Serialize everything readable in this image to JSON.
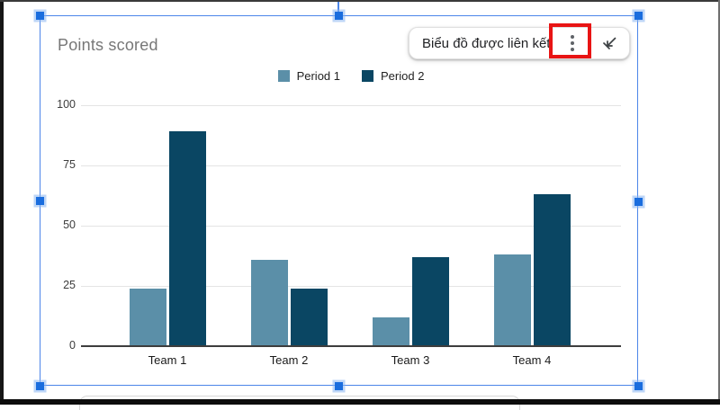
{
  "toolbar": {
    "label": "Biểu đồ được liên kết",
    "menu_icon": "vertical-ellipsis",
    "collapse_icon": "collapse-arrow",
    "highlight_color": "#e81414"
  },
  "selection": {
    "border_color": "#4c86e9",
    "handle_color": "#1a6dde",
    "handle_count": 8
  },
  "chart_data": {
    "type": "bar",
    "title": "Points scored",
    "title_color": "#777777",
    "categories": [
      "Team 1",
      "Team 2",
      "Team 3",
      "Team 4"
    ],
    "series": [
      {
        "name": "Period 1",
        "color": "#5b8fa8",
        "values": [
          24,
          36,
          12,
          38
        ]
      },
      {
        "name": "Period 2",
        "color": "#0a4663",
        "values": [
          89,
          24,
          37,
          63
        ]
      }
    ],
    "ylim": [
      0,
      100
    ],
    "yticks": [
      0,
      25,
      50,
      75,
      100
    ],
    "grid": true,
    "gridline_color": "#e4e4e4",
    "legend_position": "top"
  }
}
